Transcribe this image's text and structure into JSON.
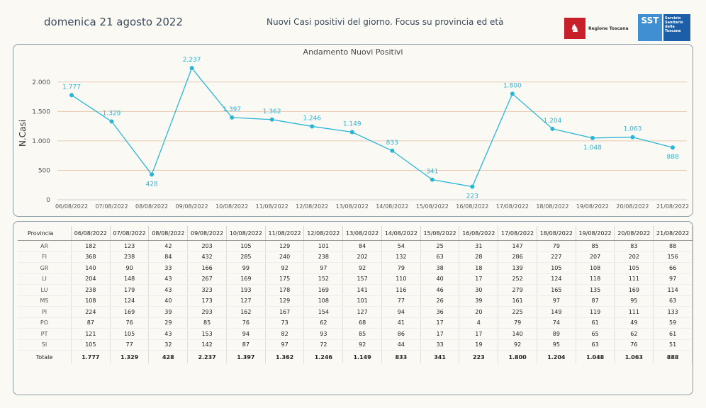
{
  "header": {
    "date": "domenica 21 agosto 2022",
    "title": "Nuovi Casi positivi del giorno. Focus su provincia ed età",
    "logo_rt_text": "Regione Toscana",
    "logo_sst_abbr": "SST",
    "logo_sst_text": "Servizio Sanitario della Toscana"
  },
  "chart_data": {
    "type": "line",
    "title": "Andamento Nuovi Positivi",
    "xlabel": "",
    "ylabel": "N.Casi",
    "ylim": [
      0,
      2250
    ],
    "yticks": [
      0,
      500,
      1000,
      1500,
      2000
    ],
    "ytick_labels": [
      "0",
      "500",
      "1.000",
      "1.500",
      "2.000"
    ],
    "categories": [
      "06/08/2022",
      "07/08/2022",
      "08/08/2022",
      "09/08/2022",
      "10/08/2022",
      "11/08/2022",
      "12/08/2022",
      "13/08/2022",
      "14/08/2022",
      "15/08/2022",
      "16/08/2022",
      "17/08/2022",
      "18/08/2022",
      "19/08/2022",
      "20/08/2022",
      "21/08/2022"
    ],
    "values": [
      1777,
      1329,
      428,
      2237,
      1397,
      1362,
      1246,
      1149,
      833,
      341,
      223,
      1800,
      1204,
      1048,
      1063,
      888
    ],
    "value_labels": [
      "1.777",
      "1.329",
      "428",
      "2.237",
      "1.397",
      "1.362",
      "1.246",
      "1.149",
      "833",
      "341",
      "223",
      "1.800",
      "1.204",
      "1.048",
      "1.063",
      "888"
    ],
    "label_pos": [
      "above",
      "above",
      "below",
      "above",
      "above",
      "above",
      "above",
      "above",
      "above",
      "above",
      "below",
      "above",
      "above",
      "below",
      "above",
      "below"
    ],
    "line_color": "#29b6d6",
    "grid_color": "#e8c9b4",
    "grid": true
  },
  "table": {
    "province_header": "Provincia",
    "dates": [
      "06/08/2022",
      "07/08/2022",
      "08/08/2022",
      "09/08/2022",
      "10/08/2022",
      "11/08/2022",
      "12/08/2022",
      "13/08/2022",
      "14/08/2022",
      "15/08/2022",
      "16/08/2022",
      "17/08/2022",
      "18/08/2022",
      "19/08/2022",
      "20/08/2022",
      "21/08/2022"
    ],
    "rows": [
      {
        "provincia": "AR",
        "values": [
          "182",
          "123",
          "42",
          "203",
          "105",
          "129",
          "101",
          "84",
          "54",
          "25",
          "31",
          "147",
          "79",
          "85",
          "83",
          "88"
        ]
      },
      {
        "provincia": "FI",
        "values": [
          "368",
          "238",
          "84",
          "432",
          "285",
          "240",
          "238",
          "202",
          "132",
          "63",
          "28",
          "286",
          "227",
          "207",
          "202",
          "156"
        ]
      },
      {
        "provincia": "GR",
        "values": [
          "140",
          "90",
          "33",
          "166",
          "99",
          "92",
          "97",
          "92",
          "79",
          "38",
          "18",
          "139",
          "105",
          "108",
          "105",
          "66"
        ]
      },
      {
        "provincia": "LI",
        "values": [
          "204",
          "148",
          "43",
          "267",
          "169",
          "175",
          "152",
          "157",
          "110",
          "40",
          "17",
          "252",
          "124",
          "118",
          "111",
          "97"
        ]
      },
      {
        "provincia": "LU",
        "values": [
          "238",
          "179",
          "43",
          "323",
          "193",
          "178",
          "169",
          "141",
          "116",
          "46",
          "30",
          "279",
          "165",
          "135",
          "169",
          "114"
        ]
      },
      {
        "provincia": "MS",
        "values": [
          "108",
          "124",
          "40",
          "173",
          "127",
          "129",
          "108",
          "101",
          "77",
          "26",
          "39",
          "161",
          "97",
          "87",
          "95",
          "63"
        ]
      },
      {
        "provincia": "PI",
        "values": [
          "224",
          "169",
          "39",
          "293",
          "162",
          "167",
          "154",
          "127",
          "94",
          "36",
          "20",
          "225",
          "149",
          "119",
          "111",
          "133"
        ]
      },
      {
        "provincia": "PO",
        "values": [
          "87",
          "76",
          "29",
          "85",
          "76",
          "73",
          "62",
          "68",
          "41",
          "17",
          "4",
          "79",
          "74",
          "61",
          "49",
          "59"
        ]
      },
      {
        "provincia": "PT",
        "values": [
          "121",
          "105",
          "43",
          "153",
          "94",
          "82",
          "93",
          "85",
          "86",
          "17",
          "17",
          "140",
          "89",
          "65",
          "62",
          "61"
        ]
      },
      {
        "provincia": "SI",
        "values": [
          "105",
          "77",
          "32",
          "142",
          "87",
          "97",
          "72",
          "92",
          "44",
          "33",
          "19",
          "92",
          "95",
          "63",
          "76",
          "51"
        ]
      }
    ],
    "total": {
      "provincia": "Totale",
      "values": [
        "1.777",
        "1.329",
        "428",
        "2.237",
        "1.397",
        "1.362",
        "1.246",
        "1.149",
        "833",
        "341",
        "223",
        "1.800",
        "1.204",
        "1.048",
        "1.063",
        "888"
      ]
    }
  }
}
